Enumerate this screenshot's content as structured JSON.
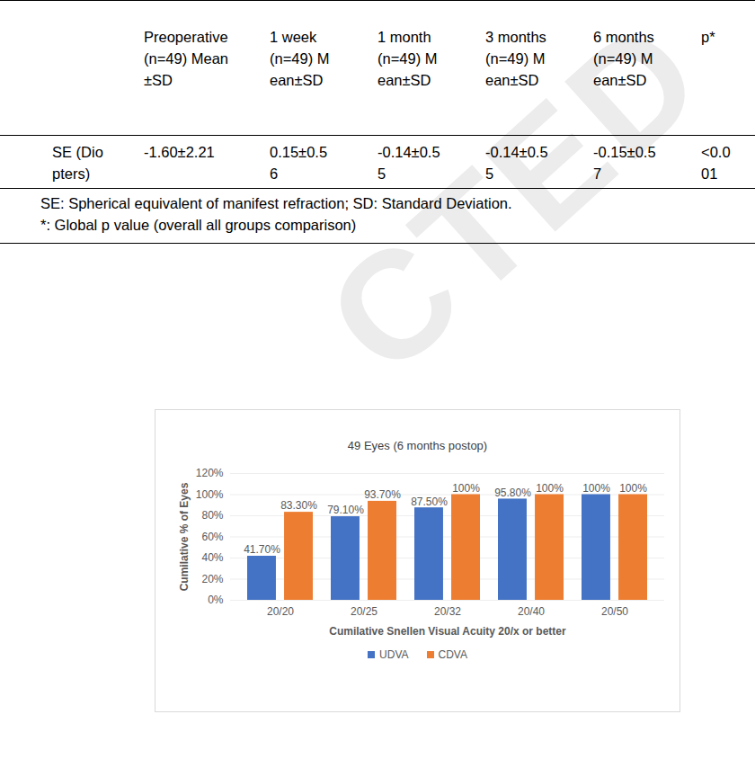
{
  "watermark": "CTED",
  "table": {
    "columns": [
      "Preoperative (n=49) Mean±SD",
      "1 week (n=49) Mean±SD",
      "1 month (n=49) Mean±SD",
      "3 months (n=49) Mean±SD",
      "6 months (n=49) Mean±SD",
      "p*"
    ],
    "rows": [
      {
        "label": "SE (Diopters)",
        "cells": [
          "-1.60±2.21",
          "0.15±0.56",
          "-0.14±0.55",
          "-0.14±0.55",
          "-0.15±0.57",
          "<0.001"
        ]
      }
    ],
    "footnotes": [
      "SE: Spherical equivalent of manifest refraction; SD: Standard Deviation.",
      "*: Global p value (overall all groups comparison)"
    ]
  },
  "chart_data": {
    "type": "bar",
    "title": "49 Eyes (6 months postop)",
    "x_label": "Cumilative Snellen Visual Acuity 20/x or better",
    "y_label": "Cumilative % of Eyes",
    "categories": [
      "20/20",
      "20/25",
      "20/32",
      "20/40",
      "20/50"
    ],
    "series": [
      {
        "name": "UDVA",
        "color": "#4472C4",
        "values": [
          41.7,
          79.1,
          87.5,
          95.8,
          100
        ],
        "value_labels": [
          "41.70%",
          "79.10%",
          "87.50%",
          "95.80%",
          "100%"
        ]
      },
      {
        "name": "CDVA",
        "color": "#ED7D31",
        "values": [
          83.3,
          93.7,
          100,
          100,
          100
        ],
        "value_labels": [
          "83.30%",
          "93.70%",
          "100%",
          "100%",
          "100%"
        ]
      }
    ],
    "ylim": [
      0,
      120
    ],
    "yticks": [
      {
        "value": 0,
        "label": "0%"
      },
      {
        "value": 20,
        "label": "20%"
      },
      {
        "value": 40,
        "label": "40%"
      },
      {
        "value": 60,
        "label": "60%"
      },
      {
        "value": 80,
        "label": "80%"
      },
      {
        "value": 100,
        "label": "100%"
      },
      {
        "value": 120,
        "label": "120%"
      }
    ],
    "grid": true,
    "data_labels": true,
    "legend": "bottom"
  }
}
